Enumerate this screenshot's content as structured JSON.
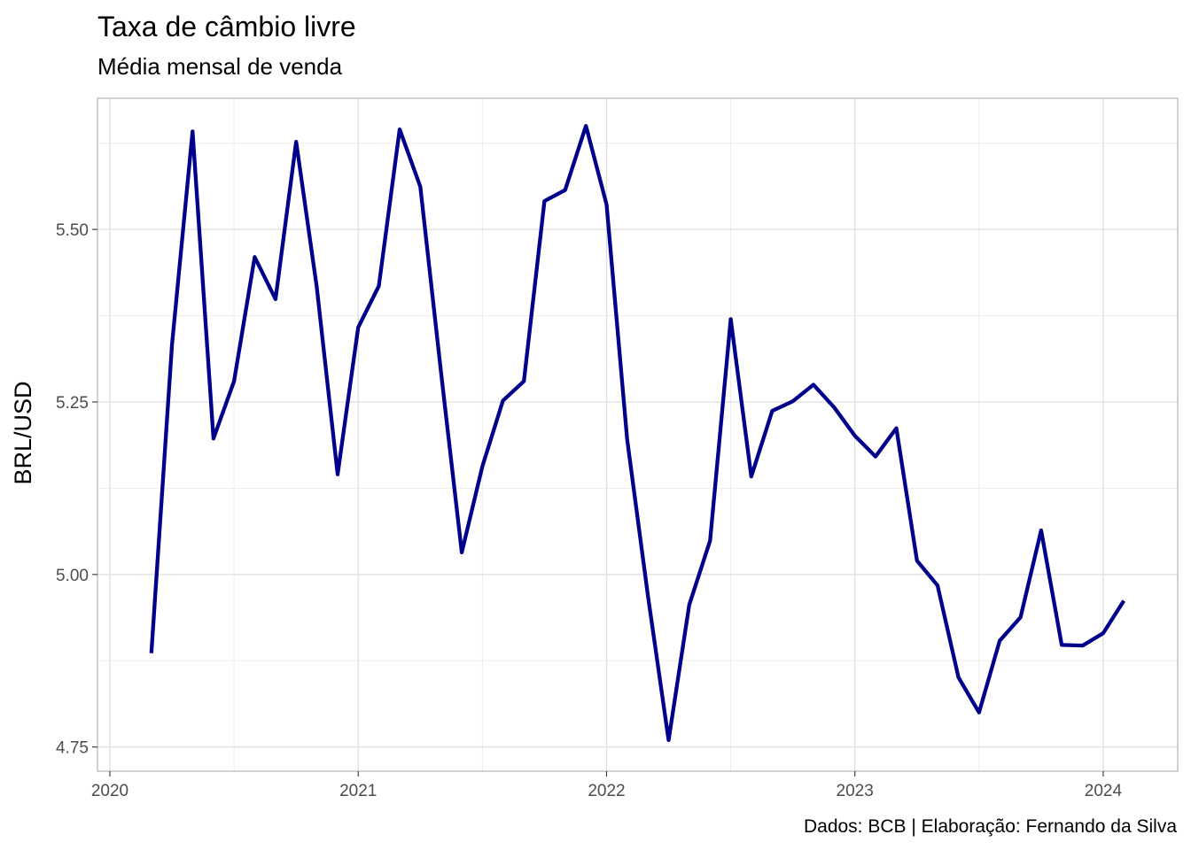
{
  "chart_data": {
    "type": "line",
    "title": "Taxa de câmbio livre",
    "subtitle": "Média mensal de venda",
    "caption": "Dados: BCB | Elaboração: Fernando da Silva",
    "xlabel": "",
    "ylabel": "BRL/USD",
    "xlim": [
      2019.95,
      2024.3
    ],
    "ylim": [
      4.715,
      5.69
    ],
    "x_ticks": [
      2020,
      2021,
      2022,
      2023,
      2024
    ],
    "x_tick_labels": [
      "2020",
      "2021",
      "2022",
      "2023",
      "2024"
    ],
    "y_ticks": [
      4.75,
      5.0,
      5.25,
      5.5
    ],
    "y_tick_labels": [
      "4.75",
      "5.00",
      "5.25",
      "5.50"
    ],
    "grid": true,
    "series": [
      {
        "color": "#00008b",
        "x": [
          2020.167,
          2020.25,
          2020.333,
          2020.417,
          2020.5,
          2020.583,
          2020.667,
          2020.75,
          2020.833,
          2020.917,
          2021.0,
          2021.083,
          2021.167,
          2021.25,
          2021.333,
          2021.417,
          2021.5,
          2021.583,
          2021.667,
          2021.75,
          2021.833,
          2021.917,
          2022.0,
          2022.083,
          2022.167,
          2022.25,
          2022.333,
          2022.417,
          2022.5,
          2022.583,
          2022.667,
          2022.75,
          2022.833,
          2022.917,
          2023.0,
          2023.083,
          2023.167,
          2023.25,
          2023.333,
          2023.417,
          2023.5,
          2023.583,
          2023.667,
          2023.75,
          2023.833,
          2023.917,
          2024.0,
          2024.083
        ],
        "y": [
          4.886,
          5.333,
          5.642,
          5.197,
          5.28,
          5.46,
          5.399,
          5.627,
          5.417,
          5.145,
          5.358,
          5.418,
          5.645,
          5.562,
          5.294,
          5.032,
          5.157,
          5.252,
          5.28,
          5.541,
          5.557,
          5.65,
          5.536,
          5.196,
          4.968,
          4.76,
          4.956,
          5.049,
          5.37,
          5.142,
          5.237,
          5.251,
          5.275,
          5.242,
          5.201,
          5.171,
          5.212,
          5.02,
          4.984,
          4.851,
          4.8,
          4.904,
          4.938,
          5.064,
          4.898,
          4.897,
          4.915,
          4.962
        ]
      }
    ]
  }
}
